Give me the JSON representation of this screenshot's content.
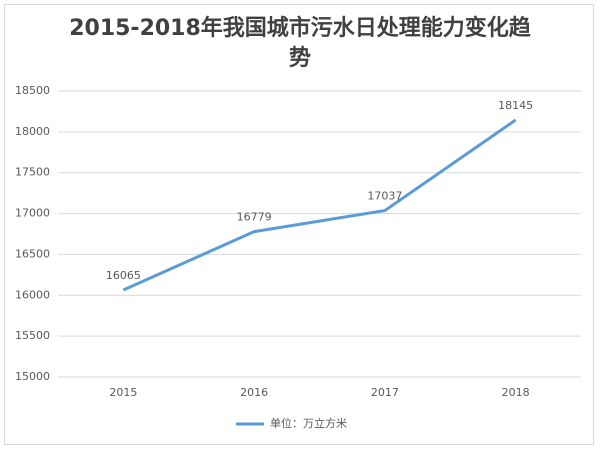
{
  "chart_data": {
    "type": "line",
    "title": "2015-2018年我国城市污水日处理能力变化趋势",
    "categories": [
      "2015",
      "2016",
      "2017",
      "2018"
    ],
    "series": [
      {
        "name": "单位：万立方米",
        "color": "#5b9bd5",
        "values": [
          16065,
          16779,
          17037,
          18145
        ]
      }
    ],
    "ylim": [
      15000,
      18500
    ],
    "yticks": [
      15000,
      15500,
      16000,
      16500,
      17000,
      17500,
      18000,
      18500
    ],
    "grid": true,
    "legend": "bottom"
  }
}
